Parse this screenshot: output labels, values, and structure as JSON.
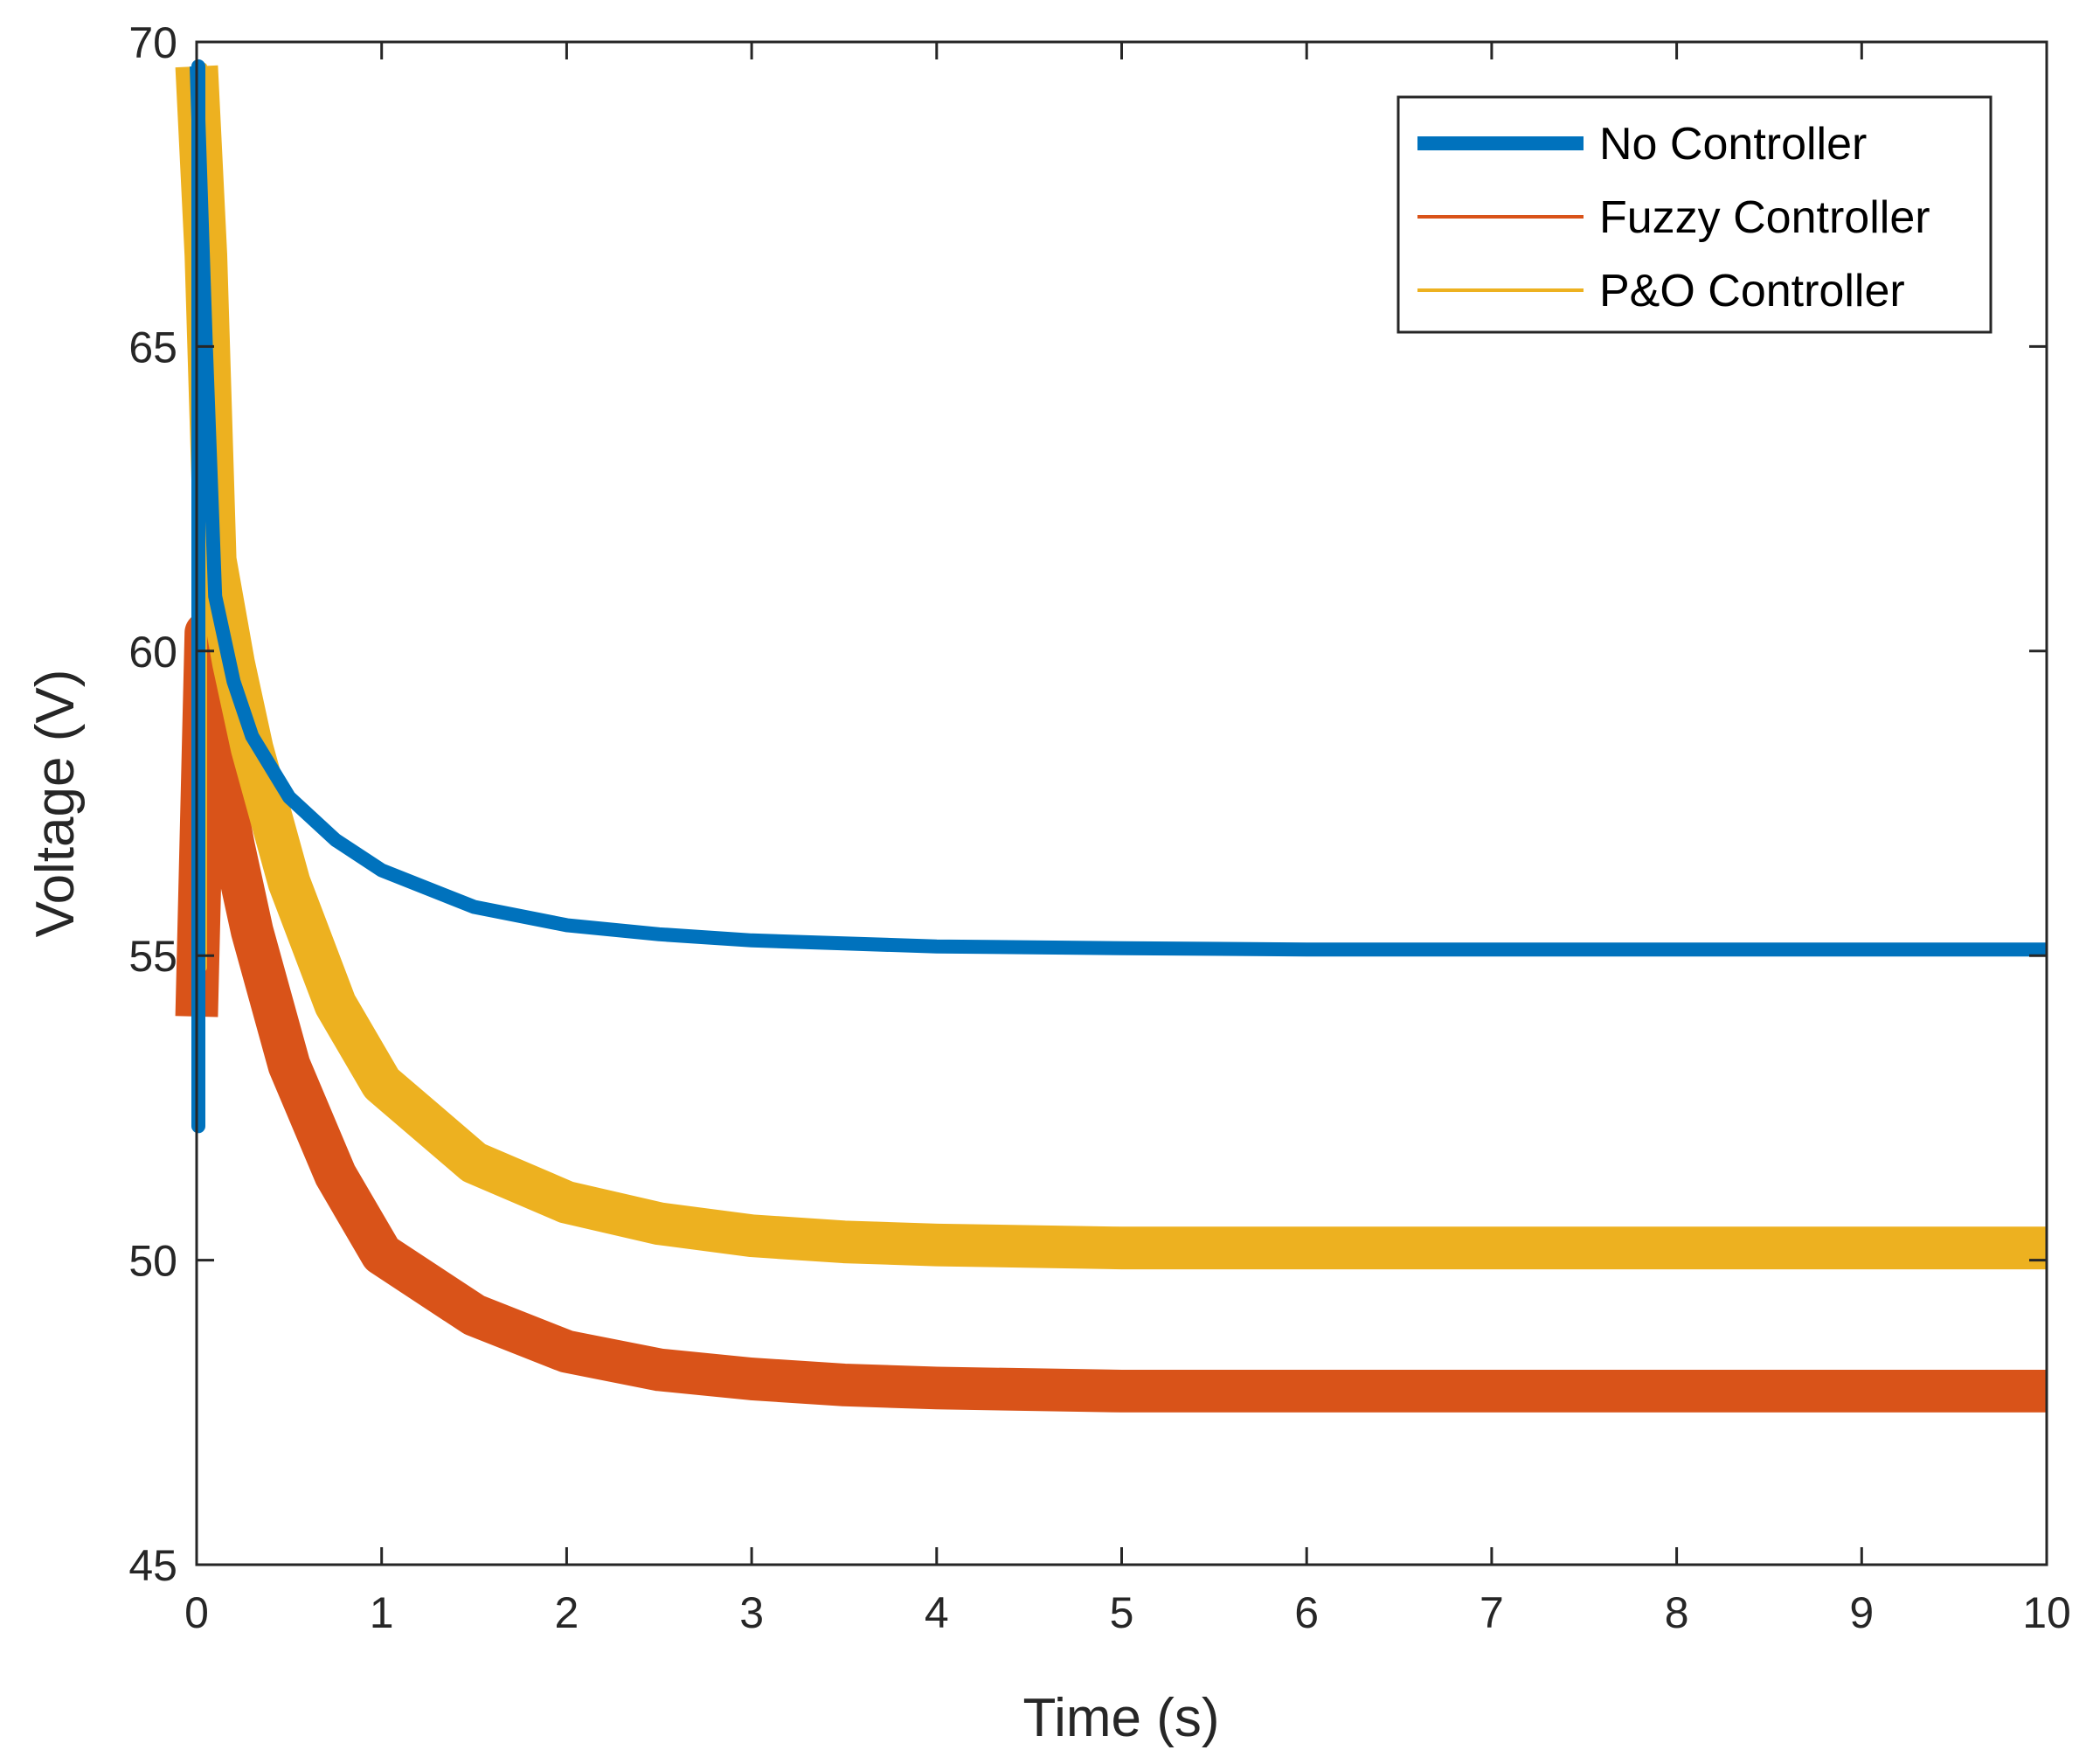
{
  "chart_data": {
    "type": "line",
    "title": "",
    "xlabel": "Time (s)",
    "ylabel": "Voltage (V)",
    "xlim": [
      0,
      10
    ],
    "ylim": [
      45,
      70
    ],
    "xticks": [
      0,
      1,
      2,
      3,
      4,
      5,
      6,
      7,
      8,
      9,
      10
    ],
    "yticks": [
      45,
      50,
      55,
      60,
      65,
      70
    ],
    "grid": false,
    "legend_position": "top-right",
    "x": [
      0,
      0.05,
      0.1,
      0.2,
      0.3,
      0.5,
      0.75,
      1,
      1.5,
      2,
      2.5,
      3,
      3.5,
      4,
      5,
      6,
      7,
      8,
      9,
      10
    ],
    "series": [
      {
        "name": "No Controller",
        "color": "#0072BD",
        "band": 0.3,
        "spike_min": 52.2,
        "spike_max": 69.6,
        "values": [
          69.6,
          65.0,
          60.9,
          59.5,
          58.6,
          57.6,
          56.9,
          56.4,
          55.8,
          55.5,
          55.35,
          55.25,
          55.2,
          55.15,
          55.12,
          55.1,
          55.1,
          55.1,
          55.1,
          55.1
        ]
      },
      {
        "name": "Fuzzy Controller",
        "color": "#D95319",
        "band": 0.7,
        "spike_min": 52.8,
        "spike_max": 60.5,
        "values": [
          54.0,
          60.3,
          58.4,
          56.8,
          55.4,
          53.2,
          51.4,
          50.1,
          49.1,
          48.5,
          48.2,
          48.05,
          47.95,
          47.9,
          47.85,
          47.85,
          47.85,
          47.85,
          47.85,
          47.85
        ]
      },
      {
        "name": "P&O Controller",
        "color": "#EDB120",
        "band": 0.7,
        "spike_min": 54.8,
        "spike_max": 69.6,
        "values": [
          69.6,
          66.5,
          61.5,
          59.8,
          58.4,
          56.2,
          54.2,
          52.9,
          51.6,
          50.95,
          50.6,
          50.4,
          50.3,
          50.25,
          50.2,
          50.2,
          50.2,
          50.2,
          50.2,
          50.2
        ]
      }
    ]
  }
}
